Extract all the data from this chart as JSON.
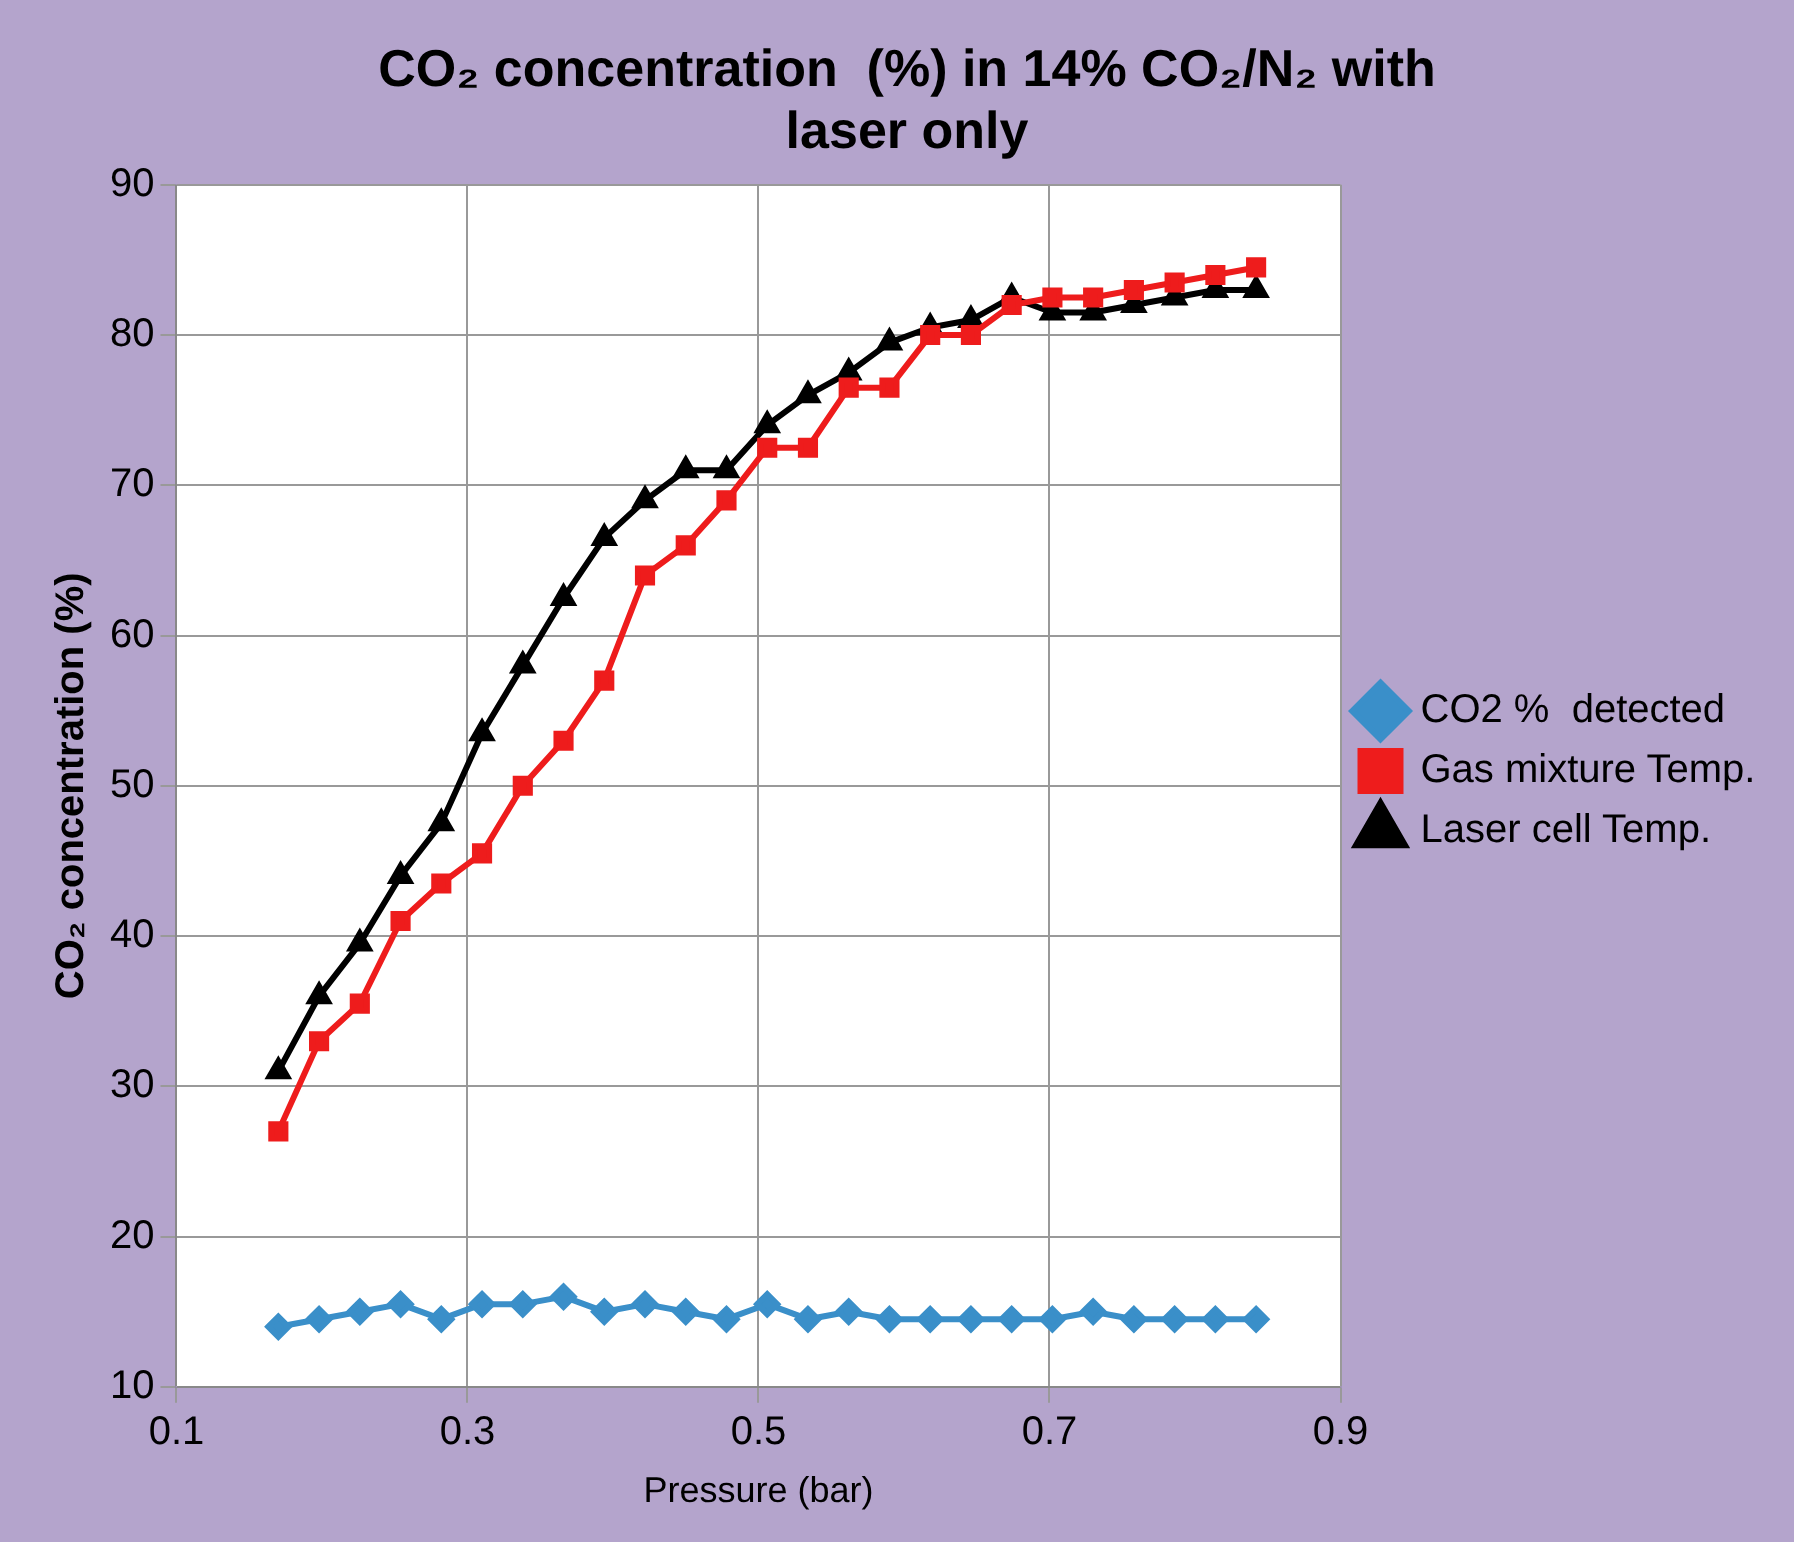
{
  "chart_data": {
    "type": "line",
    "title": "CO₂ concentration  (%) in 14% CO₂/N₂ with laser only",
    "xlabel": "Pressure (bar)",
    "ylabel": "CO₂ concentration (%)",
    "x": [
      0.17,
      0.198,
      0.226,
      0.254,
      0.282,
      0.31,
      0.338,
      0.366,
      0.394,
      0.422,
      0.45,
      0.478,
      0.506,
      0.534,
      0.562,
      0.59,
      0.618,
      0.646,
      0.674,
      0.702,
      0.73,
      0.758,
      0.786,
      0.814,
      0.842
    ],
    "series": [
      {
        "name": "CO2 %  detected",
        "color": "#3a8fc9",
        "marker": "diamond",
        "values": [
          14,
          14.5,
          15,
          15.5,
          14.5,
          15.5,
          15.5,
          16,
          15,
          15.5,
          15,
          14.5,
          15.5,
          14.5,
          15,
          14.5,
          14.5,
          14.5,
          14.5,
          14.5,
          15,
          14.5,
          14.5,
          14.5,
          14.5
        ]
      },
      {
        "name": "Gas mixture Temp.",
        "color": "#ee1c1c",
        "marker": "square",
        "values": [
          27,
          33,
          35.5,
          41,
          43.5,
          45.5,
          50,
          53,
          57,
          64,
          66,
          69,
          72.5,
          72.5,
          76.5,
          76.5,
          80,
          80,
          82,
          82.5,
          82.5,
          83,
          83.5,
          84,
          84.5
        ]
      },
      {
        "name": "Laser cell Temp.",
        "color": "#000000",
        "marker": "triangle",
        "values": [
          31,
          36,
          39.5,
          44,
          47.5,
          53.5,
          58,
          62.5,
          66.5,
          69,
          71,
          71,
          74,
          76,
          77.5,
          79.5,
          80.5,
          81,
          82.5,
          81.5,
          81.5,
          82,
          82.5,
          83,
          83
        ]
      }
    ],
    "xlim": [
      0.1,
      0.9
    ],
    "xticks": [
      0.1,
      0.3,
      0.5,
      0.7,
      0.9
    ],
    "ylim": [
      10,
      90
    ],
    "yticks": [
      10,
      20,
      30,
      40,
      50,
      60,
      70,
      80,
      90
    ],
    "grid": true,
    "legend": "right",
    "line_style": "solid"
  }
}
